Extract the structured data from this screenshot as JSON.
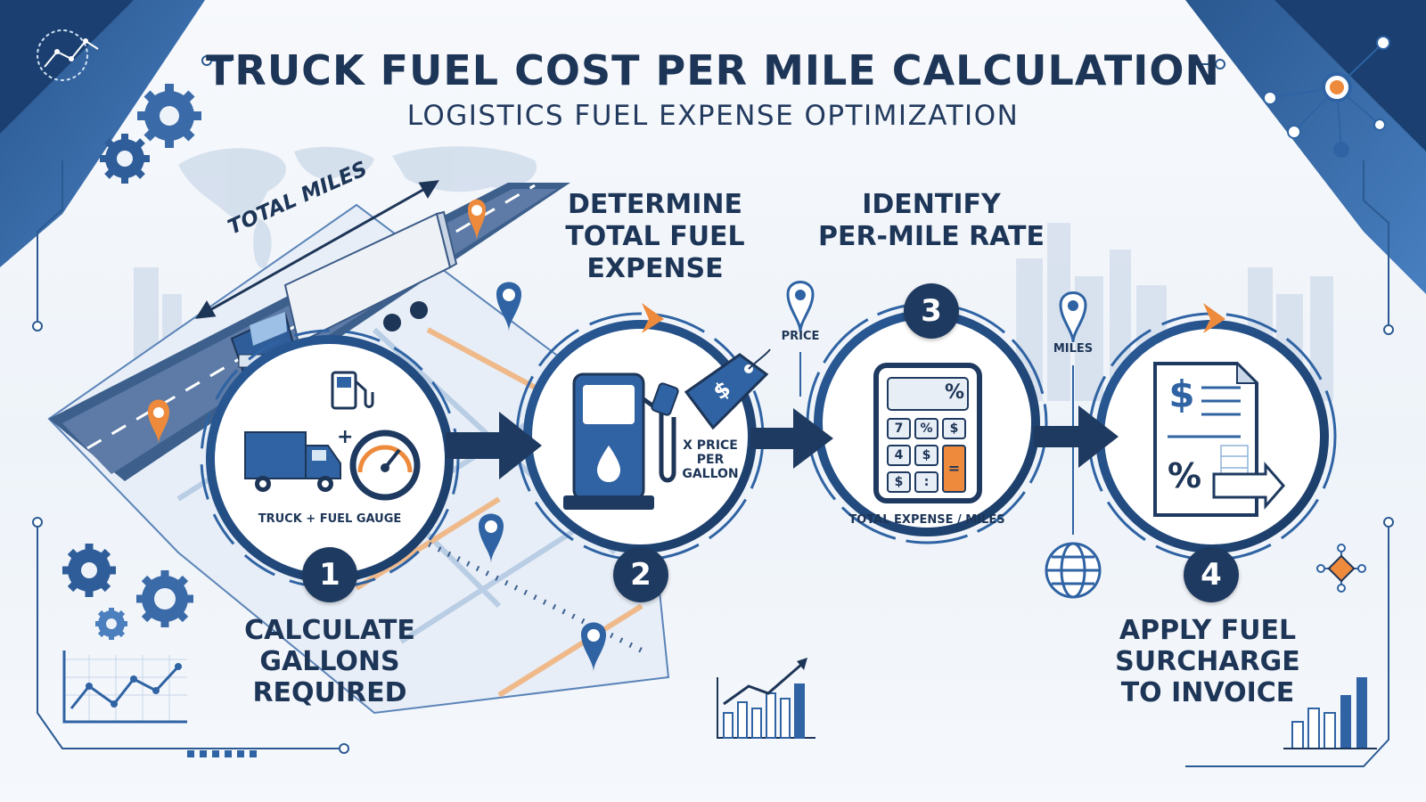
{
  "header": {
    "title": "TRUCK FUEL COST PER MILE CALCULATION",
    "subtitle": "LOGISTICS FUEL EXPENSE OPTIMIZATION"
  },
  "road": {
    "label": "TOTAL MILES"
  },
  "steps": [
    {
      "number": "1",
      "title": "CALCULATE GALLONS REQUIRED",
      "title_lines": [
        "CALCULATE",
        "GALLONS",
        "REQUIRED"
      ],
      "caption": "TRUCK + FUEL GAUGE",
      "icons": [
        "truck-icon",
        "fuel-pump-icon",
        "fuel-gauge-icon"
      ]
    },
    {
      "number": "2",
      "title": "DETERMINE TOTAL FUEL EXPENSE",
      "title_lines": [
        "DETERMINE",
        "TOTAL FUEL",
        "EXPENSE"
      ],
      "caption_lines": [
        "X PRICE",
        "PER",
        "GALLON"
      ],
      "icons": [
        "fuel-pump-icon",
        "price-tag-icon"
      ]
    },
    {
      "number": "3",
      "title": "IDENTIFY PER-MILE RATE",
      "title_lines": [
        "IDENTIFY",
        "PER-MILE RATE"
      ],
      "caption": "TOTAL EXPENSE / MILES",
      "icons": [
        "calculator-icon"
      ]
    },
    {
      "number": "4",
      "title": "APPLY FUEL SURCHARGE TO INVOICE",
      "title_lines": [
        "APPLY FUEL",
        "SURCHARGE",
        "TO INVOICE"
      ],
      "icons": [
        "invoice-icon"
      ]
    }
  ],
  "calculator": {
    "display": "%",
    "keys": [
      "7",
      "%",
      "$",
      "4",
      "$",
      "=",
      "$",
      ":"
    ]
  },
  "invoice": {
    "symbols": [
      "$",
      "%"
    ]
  },
  "markers": {
    "price": "PRICE",
    "miles": "MILES"
  },
  "price_tag_symbol": "$",
  "colors": {
    "navy": "#1f3a60",
    "blue": "#2f63a3",
    "light_blue": "#8fb3da",
    "orange": "#ee8a3c",
    "background": "#f4f7fb"
  }
}
